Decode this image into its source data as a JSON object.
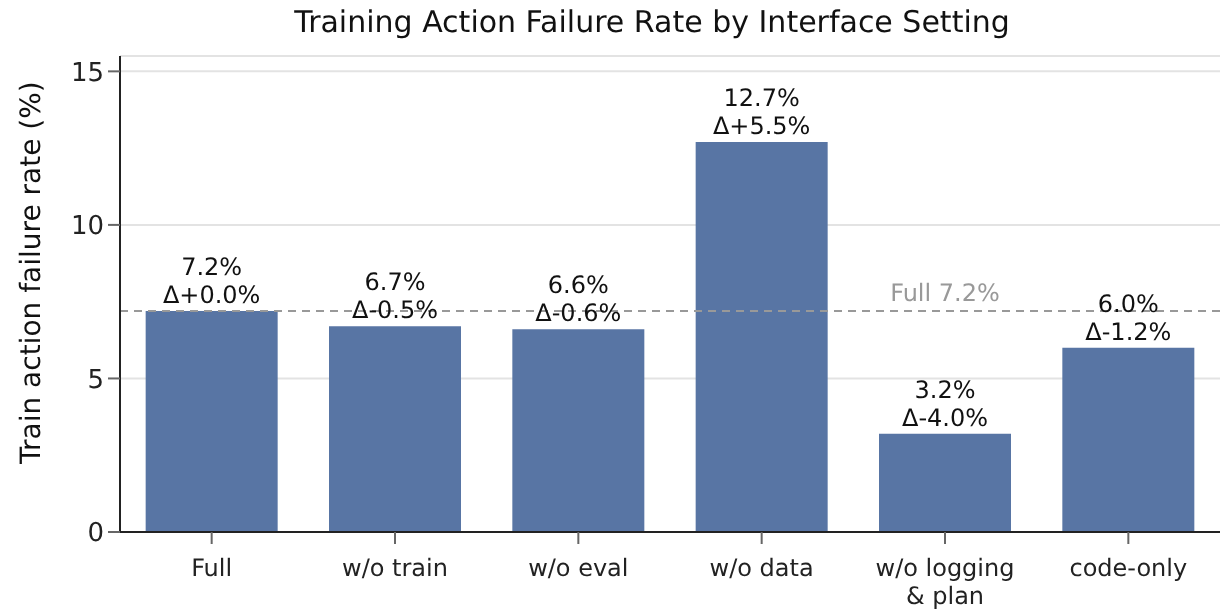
{
  "chart_data": {
    "type": "bar",
    "title": "Training Action Failure Rate by Interface Setting",
    "ylabel": "Train action failure rate (%)",
    "categories": [
      "Full",
      "w/o train",
      "w/o eval",
      "w/o data",
      "w/o logging\n& plan",
      "code-only"
    ],
    "values": [
      7.2,
      6.7,
      6.6,
      12.7,
      3.2,
      6.0
    ],
    "value_labels": [
      "7.2%\nΔ+0.0%",
      "6.7%\nΔ-0.5%",
      "6.6%\nΔ-0.6%",
      "12.7%\nΔ+5.5%",
      "3.2%\nΔ-4.0%",
      "6.0%\nΔ-1.2%"
    ],
    "color": "#5875a4",
    "ylim": [
      0,
      15.5
    ],
    "yticks": [
      0,
      5,
      10,
      15
    ],
    "grid": "y",
    "ref_lines": [
      {
        "axis": "y",
        "value": 7.2,
        "label": "Full 7.2%",
        "color": "#999999",
        "line_style": "dashed"
      }
    ]
  }
}
